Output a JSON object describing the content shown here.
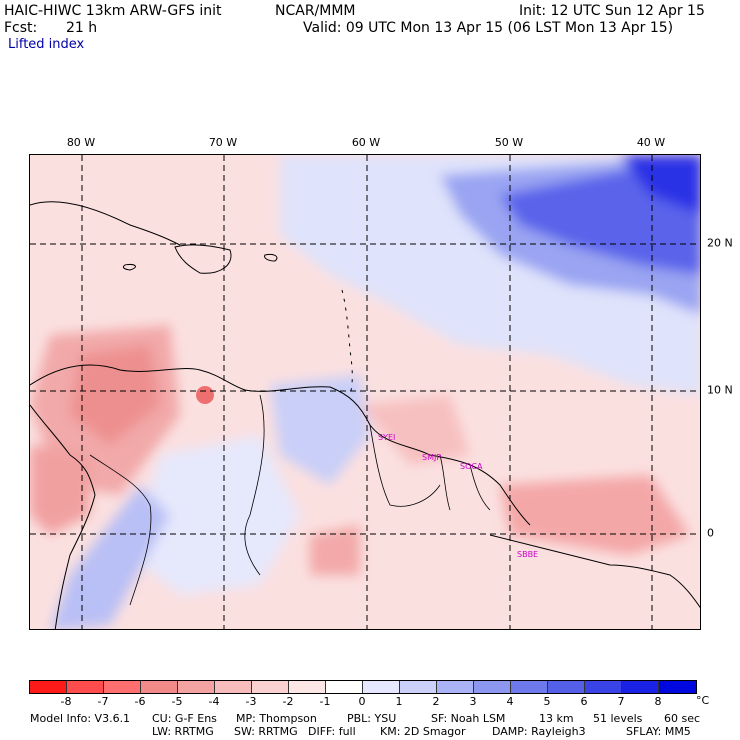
{
  "header": {
    "model_title": "HAIC-HIWC 13km ARW-GFS init",
    "center": "NCAR/MMM",
    "init_text": "Init: 12 UTC Sun 12 Apr 15",
    "forecast_label": "Fcst:",
    "forecast_value": "21 h",
    "valid_text": "Valid: 09 UTC Mon 13 Apr 15 (06 LST Mon 13 Apr 15)",
    "field_name": "Lifted index"
  },
  "map": {
    "longitude_labels": [
      "80 W",
      "70 W",
      "60 W",
      "50 W",
      "40 W"
    ],
    "latitude_labels": [
      "20 N",
      "10 N",
      "0"
    ],
    "station_labels": [
      "SYEI",
      "SMJP",
      "SOCA",
      "SBBE"
    ]
  },
  "colorbar": {
    "tick_labels": [
      "-8",
      "-7",
      "-6",
      "-5",
      "-4",
      "-3",
      "-2",
      "-1",
      "0",
      "1",
      "2",
      "3",
      "4",
      "5",
      "6",
      "7",
      "8"
    ],
    "unit": "°C",
    "colors": [
      "#ff1a1a",
      "#ff4d4d",
      "#ff6f6f",
      "#f28a8a",
      "#f4a3a3",
      "#f7bcbc",
      "#fad2d2",
      "#fde6e6",
      "#ffffff",
      "#e6e8ff",
      "#ccd1fa",
      "#aab3f5",
      "#8c97f0",
      "#6e7aeb",
      "#5560e8",
      "#3a44e6",
      "#1a22e6",
      "#0008e0"
    ]
  },
  "footer": {
    "line1": [
      "Model Info: V3.6.1",
      "CU: G-F Ens",
      "MP: Thompson",
      "PBL: YSU",
      "SF: Noah LSM",
      "13 km",
      "51 levels",
      "60 sec"
    ],
    "line2": [
      "LW: RRTMG",
      "SW: RRTMG",
      "DIFF: full",
      "KM: 2D Smagor",
      "DAMP: Rayleigh3",
      "SFLAY: MM5"
    ]
  }
}
